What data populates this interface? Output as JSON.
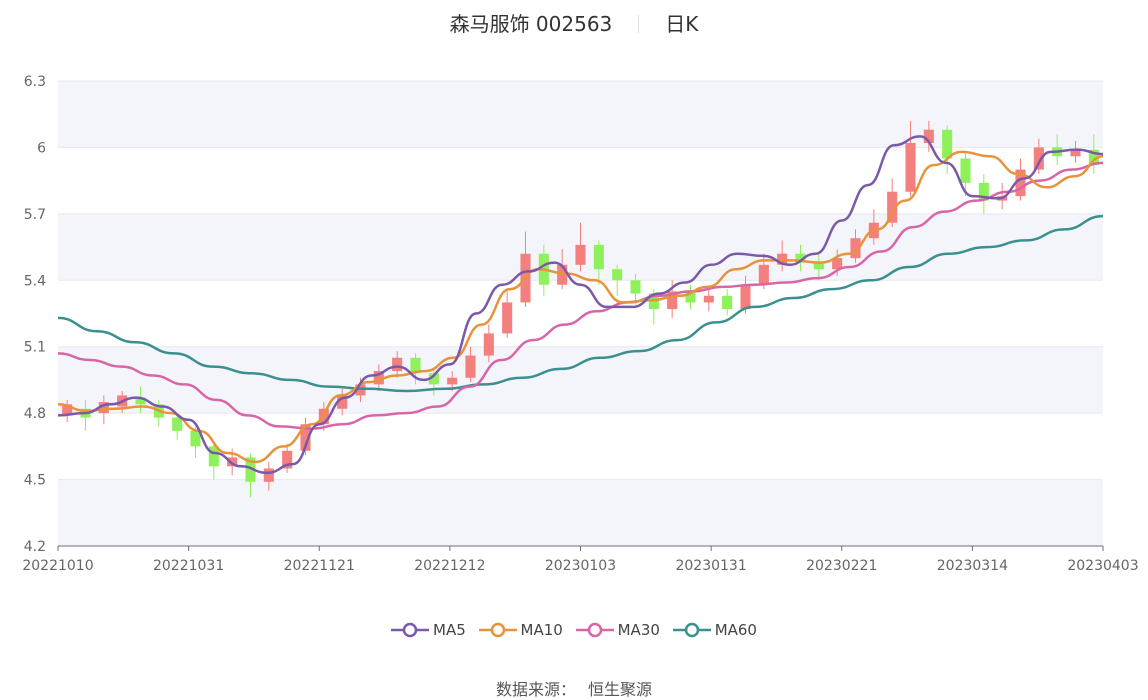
{
  "header": {
    "title": "森马服饰 002563",
    "period": "日K"
  },
  "source": {
    "label": "数据来源：",
    "value": "恒生聚源"
  },
  "chart_data": {
    "type": "candlestick",
    "ylim": [
      4.2,
      6.3
    ],
    "yticks": [
      "6.3",
      "6",
      "5.7",
      "5.4",
      "5.1",
      "4.8",
      "4.5",
      "4.2"
    ],
    "xticks": [
      "20221010",
      "20221031",
      "20221121",
      "20221212",
      "20230103",
      "20230131",
      "20230221",
      "20230314",
      "20230403"
    ],
    "colors": {
      "up": "#f47f7f",
      "down": "#8ef05a",
      "MA5": "#7a5aa8",
      "MA10": "#e8933c",
      "MA30": "#d865a8",
      "MA60": "#3b8f8f"
    },
    "ma": {
      "MA5": [
        4.79,
        4.8,
        4.84,
        4.87,
        4.83,
        4.77,
        4.62,
        4.56,
        4.53,
        4.57,
        4.75,
        4.87,
        4.97,
        5.01,
        4.95,
        5.02,
        5.25,
        5.38,
        5.44,
        5.48,
        5.38,
        5.28,
        5.28,
        5.34,
        5.39,
        5.47,
        5.52,
        5.51,
        5.47,
        5.52,
        5.67,
        5.83,
        6.01,
        6.05,
        5.93,
        5.78,
        5.77,
        5.86,
        5.98,
        5.99,
        5.97
      ],
      "MA10": [
        4.84,
        4.81,
        4.82,
        4.83,
        4.8,
        4.72,
        4.62,
        4.58,
        4.65,
        4.75,
        4.88,
        4.94,
        4.97,
        4.99,
        5.05,
        5.2,
        5.36,
        5.45,
        5.43,
        5.4,
        5.3,
        5.31,
        5.33,
        5.37,
        5.45,
        5.49,
        5.49,
        5.48,
        5.52,
        5.63,
        5.76,
        5.92,
        5.98,
        5.96,
        5.88,
        5.82,
        5.87,
        5.96
      ],
      "MA30": [
        5.07,
        5.04,
        5.01,
        4.97,
        4.93,
        4.86,
        4.79,
        4.74,
        4.73,
        4.75,
        4.79,
        4.8,
        4.83,
        4.92,
        5.04,
        5.13,
        5.2,
        5.26,
        5.3,
        5.33,
        5.35,
        5.37,
        5.38,
        5.39,
        5.41,
        5.46,
        5.53,
        5.64,
        5.71,
        5.76,
        5.8,
        5.85,
        5.9,
        5.93
      ],
      "MA60": [
        5.23,
        5.17,
        5.12,
        5.07,
        5.01,
        4.98,
        4.95,
        4.92,
        4.91,
        4.9,
        4.91,
        4.93,
        4.96,
        5.0,
        5.05,
        5.08,
        5.13,
        5.21,
        5.28,
        5.32,
        5.36,
        5.4,
        5.46,
        5.52,
        5.55,
        5.58,
        5.63,
        5.69
      ]
    },
    "candles": [
      [
        4.79,
        4.84,
        4.76,
        4.86
      ],
      [
        4.82,
        4.78,
        4.72,
        4.86
      ],
      [
        4.8,
        4.85,
        4.75,
        4.88
      ],
      [
        4.83,
        4.88,
        4.8,
        4.9
      ],
      [
        4.87,
        4.84,
        4.8,
        4.92
      ],
      [
        4.84,
        4.78,
        4.74,
        4.86
      ],
      [
        4.78,
        4.72,
        4.68,
        4.8
      ],
      [
        4.72,
        4.65,
        4.6,
        4.74
      ],
      [
        4.65,
        4.56,
        4.5,
        4.67
      ],
      [
        4.56,
        4.6,
        4.52,
        4.64
      ],
      [
        4.6,
        4.49,
        4.42,
        4.62
      ],
      [
        4.49,
        4.55,
        4.45,
        4.58
      ],
      [
        4.55,
        4.63,
        4.53,
        4.66
      ],
      [
        4.63,
        4.75,
        4.61,
        4.78
      ],
      [
        4.75,
        4.82,
        4.72,
        4.85
      ],
      [
        4.82,
        4.88,
        4.79,
        4.91
      ],
      [
        4.88,
        4.93,
        4.85,
        4.96
      ],
      [
        4.93,
        4.99,
        4.9,
        5.02
      ],
      [
        4.99,
        5.05,
        4.96,
        5.08
      ],
      [
        5.05,
        4.98,
        4.93,
        5.07
      ],
      [
        4.98,
        4.93,
        4.88,
        5.0
      ],
      [
        4.93,
        4.96,
        4.9,
        4.99
      ],
      [
        4.96,
        5.06,
        4.94,
        5.1
      ],
      [
        5.06,
        5.16,
        5.03,
        5.2
      ],
      [
        5.16,
        5.3,
        5.14,
        5.35
      ],
      [
        5.3,
        5.52,
        5.28,
        5.62
      ],
      [
        5.52,
        5.38,
        5.33,
        5.56
      ],
      [
        5.38,
        5.47,
        5.36,
        5.54
      ],
      [
        5.47,
        5.56,
        5.44,
        5.66
      ],
      [
        5.56,
        5.45,
        5.38,
        5.58
      ],
      [
        5.45,
        5.4,
        5.33,
        5.47
      ],
      [
        5.4,
        5.34,
        5.29,
        5.43
      ],
      [
        5.34,
        5.27,
        5.2,
        5.36
      ],
      [
        5.27,
        5.35,
        5.23,
        5.4
      ],
      [
        5.35,
        5.3,
        5.27,
        5.38
      ],
      [
        5.3,
        5.33,
        5.26,
        5.36
      ],
      [
        5.33,
        5.27,
        5.24,
        5.36
      ],
      [
        5.27,
        5.38,
        5.25,
        5.42
      ],
      [
        5.38,
        5.47,
        5.36,
        5.52
      ],
      [
        5.47,
        5.52,
        5.44,
        5.58
      ],
      [
        5.52,
        5.48,
        5.44,
        5.56
      ],
      [
        5.48,
        5.45,
        5.4,
        5.52
      ],
      [
        5.45,
        5.5,
        5.42,
        5.54
      ],
      [
        5.5,
        5.59,
        5.48,
        5.63
      ],
      [
        5.59,
        5.66,
        5.56,
        5.72
      ],
      [
        5.66,
        5.8,
        5.64,
        5.86
      ],
      [
        5.8,
        6.02,
        5.78,
        6.12
      ],
      [
        6.02,
        6.08,
        5.98,
        6.12
      ],
      [
        6.08,
        5.95,
        5.88,
        6.1
      ],
      [
        5.95,
        5.84,
        5.78,
        5.98
      ],
      [
        5.84,
        5.76,
        5.7,
        5.88
      ],
      [
        5.76,
        5.78,
        5.72,
        5.84
      ],
      [
        5.78,
        5.9,
        5.76,
        5.95
      ],
      [
        5.9,
        6.0,
        5.88,
        6.04
      ],
      [
        6.0,
        5.96,
        5.92,
        6.06
      ],
      [
        5.96,
        5.99,
        5.93,
        6.03
      ],
      [
        5.99,
        5.92,
        5.88,
        6.06
      ]
    ]
  },
  "legend": [
    {
      "key": "MA5",
      "label": "MA5",
      "color": "#7a5aa8"
    },
    {
      "key": "MA10",
      "label": "MA10",
      "color": "#e8933c"
    },
    {
      "key": "MA30",
      "label": "MA30",
      "color": "#d865a8"
    },
    {
      "key": "MA60",
      "label": "MA60",
      "color": "#3b8f8f"
    }
  ]
}
